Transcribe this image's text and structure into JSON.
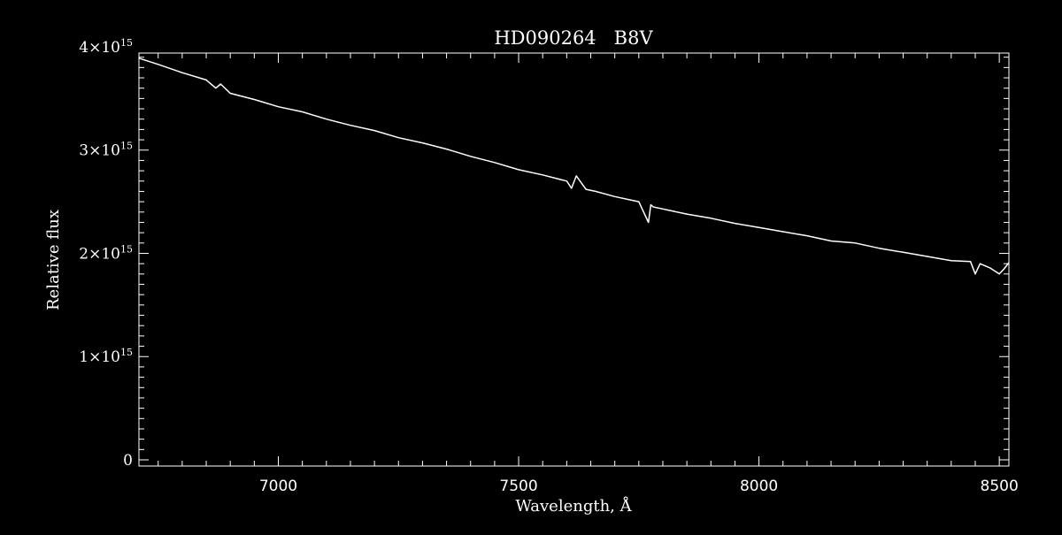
{
  "chart_data": {
    "type": "line",
    "title": "HD090264   B8V",
    "xlabel": "Wavelength, Å",
    "ylabel": "Relative flux",
    "xlim": [
      6710,
      8520
    ],
    "ylim": [
      -60000000000000.0,
      3940000000000000.0
    ],
    "x_ticks": [
      7000,
      7500,
      8000,
      8500
    ],
    "x_tick_labels": [
      "7000",
      "7500",
      "8000",
      "8500"
    ],
    "y_ticks": [
      0,
      1000000000000000.0,
      2000000000000000.0,
      3000000000000000.0,
      4000000000000000.0
    ],
    "y_tick_labels": [
      {
        "mantissa": "0",
        "exponent": ""
      },
      {
        "mantissa": "1×10",
        "exponent": "15"
      },
      {
        "mantissa": "2×10",
        "exponent": "15"
      },
      {
        "mantissa": "3×10",
        "exponent": "15"
      },
      {
        "mantissa": "4×10",
        "exponent": "15"
      }
    ],
    "grid": false,
    "colors": {
      "background": "#000000",
      "foreground": "#ffffff",
      "line": "#ffffff"
    },
    "series": [
      {
        "x": [
          6710,
          6750,
          6800,
          6850,
          6870,
          6880,
          6900,
          6950,
          7000,
          7050,
          7100,
          7150,
          7200,
          7250,
          7300,
          7350,
          7400,
          7450,
          7500,
          7550,
          7600,
          7610,
          7620,
          7640,
          7660,
          7700,
          7750,
          7770,
          7775,
          7780,
          7800,
          7850,
          7900,
          7950,
          8000,
          8050,
          8100,
          8150,
          8200,
          8250,
          8300,
          8350,
          8400,
          8440,
          8450,
          8460,
          8480,
          8500,
          8510,
          8520
        ],
        "y": [
          3890000000000000.0,
          3830000000000000.0,
          3750000000000000.0,
          3680000000000000.0,
          3600000000000000.0,
          3640000000000000.0,
          3550000000000000.0,
          3490000000000000.0,
          3420000000000000.0,
          3370000000000000.0,
          3300000000000000.0,
          3240000000000000.0,
          3190000000000000.0,
          3120000000000000.0,
          3070000000000000.0,
          3010000000000000.0,
          2940000000000000.0,
          2880000000000000.0,
          2810000000000000.0,
          2760000000000000.0,
          2700000000000000.0,
          2630000000000000.0,
          2750000000000000.0,
          2620000000000000.0,
          2600000000000000.0,
          2550000000000000.0,
          2500000000000000.0,
          2300000000000000.0,
          2470000000000000.0,
          2450000000000000.0,
          2430000000000000.0,
          2380000000000000.0,
          2340000000000000.0,
          2290000000000000.0,
          2250000000000000.0,
          2210000000000000.0,
          2170000000000000.0,
          2120000000000000.0,
          2100000000000000.0,
          2050000000000000.0,
          2010000000000000.0,
          1970000000000000.0,
          1930000000000000.0,
          1920000000000000.0,
          1800000000000000.0,
          1900000000000000.0,
          1860000000000000.0,
          1800000000000000.0,
          1850000000000000.0,
          1910000000000000.0
        ]
      }
    ]
  }
}
